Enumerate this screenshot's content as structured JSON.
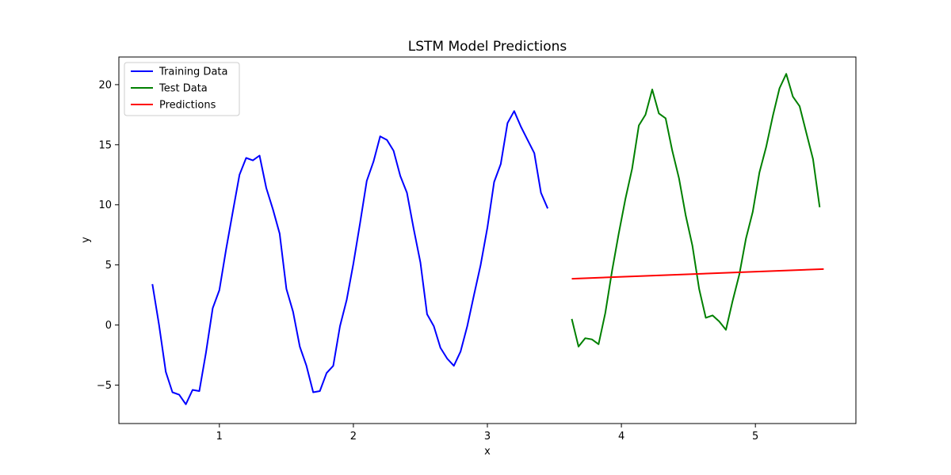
{
  "chart_data": {
    "type": "line",
    "title": "LSTM Model Predictions",
    "xlabel": "x",
    "ylabel": "y",
    "xlim": [
      0.25,
      5.75
    ],
    "ylim": [
      -8.2,
      22.3
    ],
    "xticks": [
      1,
      2,
      3,
      4,
      5
    ],
    "xtick_labels": [
      "1",
      "2",
      "3",
      "4",
      "5"
    ],
    "yticks": [
      -5,
      0,
      5,
      10,
      15,
      20
    ],
    "ytick_labels": [
      "−5",
      "0",
      "5",
      "10",
      "15",
      "20"
    ],
    "grid": false,
    "legend_position": "top-left",
    "series": [
      {
        "name": "Training Data",
        "color": "#0000ff",
        "x": [
          0.5,
          0.55,
          0.6,
          0.65,
          0.7,
          0.75,
          0.8,
          0.85,
          0.9,
          0.95,
          1.0,
          1.05,
          1.1,
          1.15,
          1.2,
          1.25,
          1.3,
          1.35,
          1.4,
          1.45,
          1.5,
          1.55,
          1.6,
          1.65,
          1.7,
          1.75,
          1.8,
          1.85,
          1.9,
          1.95,
          2.0,
          2.05,
          2.1,
          2.15,
          2.2,
          2.25,
          2.3,
          2.35,
          2.4,
          2.45,
          2.5,
          2.55,
          2.6,
          2.65,
          2.7,
          2.75,
          2.8,
          2.85,
          2.9,
          2.95,
          3.0,
          3.05,
          3.1,
          3.15,
          3.2,
          3.25,
          3.3,
          3.35,
          3.4,
          3.45,
          3.5
        ],
        "y": [
          3.4,
          0.0,
          -3.9,
          -5.6,
          -5.8,
          -6.6,
          -5.4,
          -5.5,
          -2.3,
          1.4,
          2.9,
          6.3,
          9.4,
          12.5,
          13.9,
          13.7,
          14.1,
          11.4,
          9.6,
          7.6,
          3.0,
          1.1,
          -1.8,
          -3.4,
          -5.6,
          -5.5,
          -4.0,
          -3.4,
          -0.1,
          2.1,
          5.1,
          8.5,
          12.0,
          13.6,
          15.7,
          15.4,
          14.5,
          12.4,
          11.0,
          8.0,
          5.2,
          0.9,
          -0.1,
          -1.9,
          -2.8,
          -3.4,
          -2.2,
          -0.1,
          2.5,
          5.0,
          8.1,
          11.9,
          13.4,
          16.8,
          17.8,
          16.5,
          15.4,
          14.3,
          11.0,
          9.7,
          null
        ]
      },
      {
        "name": "Test Data",
        "color": "#008000",
        "x": [
          3.63,
          3.68,
          3.73,
          3.78,
          3.83,
          3.88,
          3.93,
          3.98,
          4.03,
          4.08,
          4.13,
          4.18,
          4.23,
          4.28,
          4.33,
          4.38,
          4.43,
          4.48,
          4.53,
          4.58,
          4.63,
          4.68,
          4.73,
          4.78,
          4.83,
          4.88,
          4.93,
          4.98,
          5.03,
          5.08,
          5.13,
          5.18,
          5.23,
          5.28,
          5.33,
          5.38,
          5.43,
          5.48,
          5.51
        ],
        "y": [
          0.5,
          -1.8,
          -1.1,
          -1.2,
          -1.6,
          1.0,
          4.5,
          7.6,
          10.5,
          13.0,
          16.6,
          17.5,
          19.6,
          17.6,
          17.2,
          14.5,
          12.2,
          9.1,
          6.6,
          3.0,
          0.6,
          0.8,
          0.3,
          -0.4,
          2.0,
          4.2,
          7.2,
          9.4,
          12.7,
          14.8,
          17.4,
          19.7,
          20.9,
          19.0,
          18.2,
          16.0,
          13.8,
          9.8,
          null
        ]
      },
      {
        "name": "Predictions",
        "color": "#ff0000",
        "x": [
          3.63,
          5.51
        ],
        "y": [
          3.85,
          4.65
        ]
      }
    ]
  }
}
